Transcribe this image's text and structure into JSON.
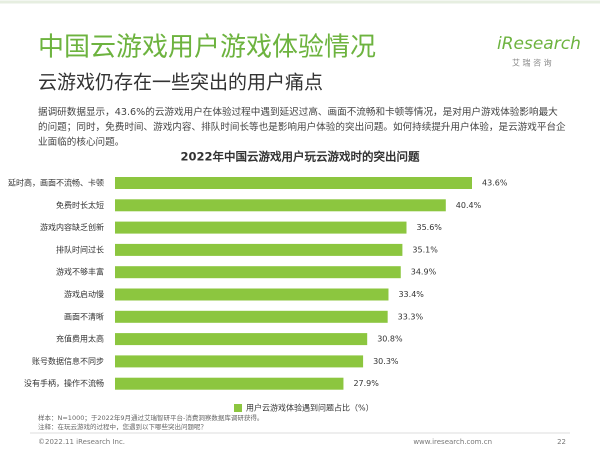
{
  "header": {
    "title": "中国云游戏用户游戏体验情况",
    "subtitle": "云游戏仍存在一些突出的用户痛点",
    "logo": "iResearch",
    "logo_sub": "艾 瑞 咨 询"
  },
  "body_text": "据调研数据显示，43.6%的云游戏用户在体验过程中遇到延迟过高、画面不流畅和卡顿等情况，是对用户游戏体验影响最大的问题；同时，免费时间、游戏内容、排队时间长等也是影响用户体验的突出问题。如何持续提升用户体验，是云游戏平台企业面临的核心问题。",
  "chart_data": {
    "type": "bar",
    "orientation": "horizontal",
    "title": "2022年中国云游戏用户玩云游戏时的突出问题",
    "categories": [
      "延时高，画面不流畅、卡顿",
      "免费时长太短",
      "游戏内容缺乏创新",
      "排队时间过长",
      "游戏不够丰富",
      "游戏启动慢",
      "画面不清晰",
      "充值费用太高",
      "账号数据信息不同步",
      "没有手柄，操作不流畅"
    ],
    "series": [
      {
        "name": "用户云游戏体验遇到问题占比（%）",
        "color": "#8cc63f",
        "values": [
          43.6,
          40.4,
          35.6,
          35.1,
          34.9,
          33.4,
          33.3,
          30.8,
          30.3,
          27.9
        ],
        "value_labels": [
          "43.6%",
          "40.4%",
          "35.6%",
          "35.1%",
          "34.9%",
          "33.4%",
          "33.3%",
          "30.8%",
          "30.3%",
          "27.9%"
        ]
      }
    ],
    "legend": "bottom"
  },
  "notes": [
    "样本：N=1000；于2022年9月通过艾瑞智研平台-消费洞察数据库调研获得。",
    "注释：在玩云游戏的过程中，您遇到以下哪些突出问题呢？"
  ],
  "footer": {
    "copyright": "©2022.11 iResearch Inc.",
    "url": "www.iresearch.com.cn",
    "page": "22"
  }
}
